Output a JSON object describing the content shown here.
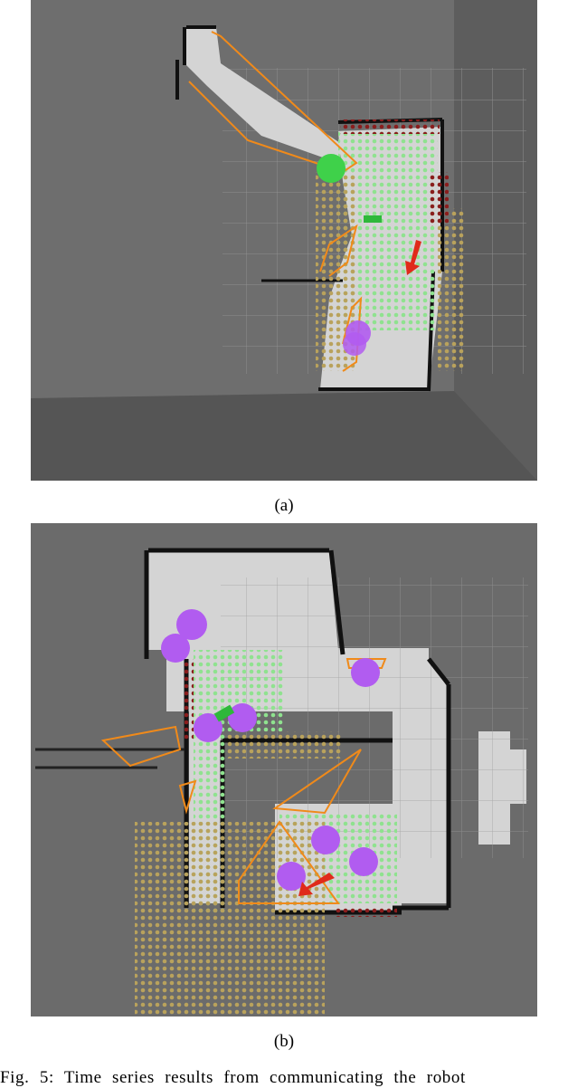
{
  "figure": {
    "panel_a_label": "(a)",
    "panel_b_label": "(b)",
    "caption": "Fig. 5: Time series results from communicating the robot"
  },
  "colors": {
    "background": "#6b6b6b",
    "free_space": "#d4d4d4",
    "obstacle": "#111111",
    "grid": "#8f8f8f",
    "frontier_dots": "#8fe28f",
    "unknown_dots": "#b9a25c",
    "inflated_dots": "#8a1d1d",
    "region_outline": "#f08a1a",
    "agent_purple": "#b15cf0",
    "agent_green": "#3fd14a",
    "goal_arrow": "#e02a1a"
  }
}
